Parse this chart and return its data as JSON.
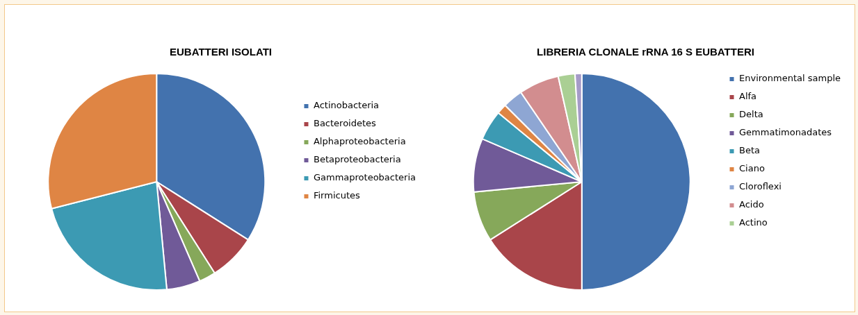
{
  "chart_data": [
    {
      "type": "pie",
      "title": "EUBATTERI ISOLATI",
      "legend": "right",
      "categories": [
        "Actinobacteria",
        "Bacteroidetes",
        "Alphaproteobacteria",
        "Betaproteobacteria",
        "Gammaproteobacteria",
        "Firmicutes"
      ],
      "values": [
        34,
        7,
        2.5,
        5,
        22.5,
        29
      ],
      "colors": [
        "#4372ae",
        "#a9454a",
        "#86a85a",
        "#705a98",
        "#3c9ab3",
        "#df8544"
      ]
    },
    {
      "type": "pie",
      "title": "LIBRERIA CLONALE rRNA 16 S EUBATTERI",
      "legend": "right",
      "categories": [
        "Environmental sample",
        "Alfa",
        "Delta",
        "Gemmatimonadates",
        "Beta",
        "Ciano",
        "Cloroflexi",
        "Acido",
        "Actino",
        null
      ],
      "values": [
        50,
        16,
        7.5,
        8,
        4.5,
        1.5,
        3,
        6,
        2.5,
        1
      ],
      "colors": [
        "#4372ae",
        "#a9454a",
        "#86a85a",
        "#705a98",
        "#3c9ab3",
        "#df8544",
        "#8ea6d3",
        "#d28d8f",
        "#aacf94",
        "#a59bc8"
      ]
    }
  ]
}
